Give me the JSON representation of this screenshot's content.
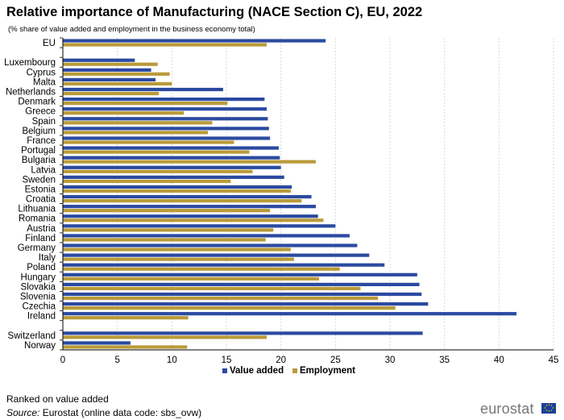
{
  "header": {
    "title": "Relative importance of Manufacturing (NACE Section C), EU, 2022",
    "subtitle": "(% share of value added and employment in the business economy total)"
  },
  "footer": {
    "note": "Ranked on value added",
    "source_label": "Source:",
    "source_text": " Eurostat (online data code: sbs_ovw)",
    "logo_text": "eurostat"
  },
  "colors": {
    "value_added": "#2b4aa0",
    "employment": "#b99b3a",
    "grid": "#d9d9d9",
    "axis": "#000000"
  },
  "chart_data": {
    "type": "bar",
    "orientation": "horizontal",
    "title": "Relative importance of Manufacturing (NACE Section C), EU, 2022",
    "xlabel": "",
    "ylabel": "",
    "xlim": [
      0,
      45
    ],
    "xticks": [
      0,
      5,
      10,
      15,
      20,
      25,
      30,
      35,
      40,
      45
    ],
    "legend_position": "bottom",
    "categories": [
      "EU",
      "",
      "Luxembourg",
      "Cyprus",
      "Malta",
      "Netherlands",
      "Denmark",
      "Greece",
      "Spain",
      "Belgium",
      "France",
      "Portugal",
      "Bulgaria",
      "Latvia",
      "Sweden",
      "Estonia",
      "Croatia",
      "Lithuania",
      "Romania",
      "Austria",
      "Finland",
      "Germany",
      "Italy",
      "Poland",
      "Hungary",
      "Slovakia",
      "Slovenia",
      "Czechia",
      "Ireland",
      "",
      "Switzerland",
      "Norway"
    ],
    "series": [
      {
        "name": "Value added",
        "values": [
          24.1,
          null,
          6.6,
          8.1,
          8.5,
          14.7,
          18.5,
          18.7,
          18.8,
          18.9,
          19.0,
          19.8,
          19.9,
          20.0,
          20.3,
          21.0,
          22.8,
          23.2,
          23.4,
          25.0,
          26.3,
          27.0,
          28.1,
          29.5,
          32.5,
          32.7,
          32.9,
          33.5,
          41.6,
          null,
          33.0,
          6.2
        ],
        "color": "#2b4aa0"
      },
      {
        "name": "Employment",
        "values": [
          18.7,
          null,
          8.7,
          9.8,
          10.0,
          8.8,
          15.1,
          11.1,
          13.7,
          13.3,
          15.7,
          17.1,
          23.2,
          17.4,
          15.4,
          20.9,
          21.9,
          19.0,
          23.9,
          19.3,
          18.6,
          20.9,
          21.2,
          25.4,
          23.5,
          27.3,
          28.9,
          30.5,
          11.5,
          null,
          18.7,
          11.4
        ],
        "color": "#b99b3a"
      }
    ]
  }
}
